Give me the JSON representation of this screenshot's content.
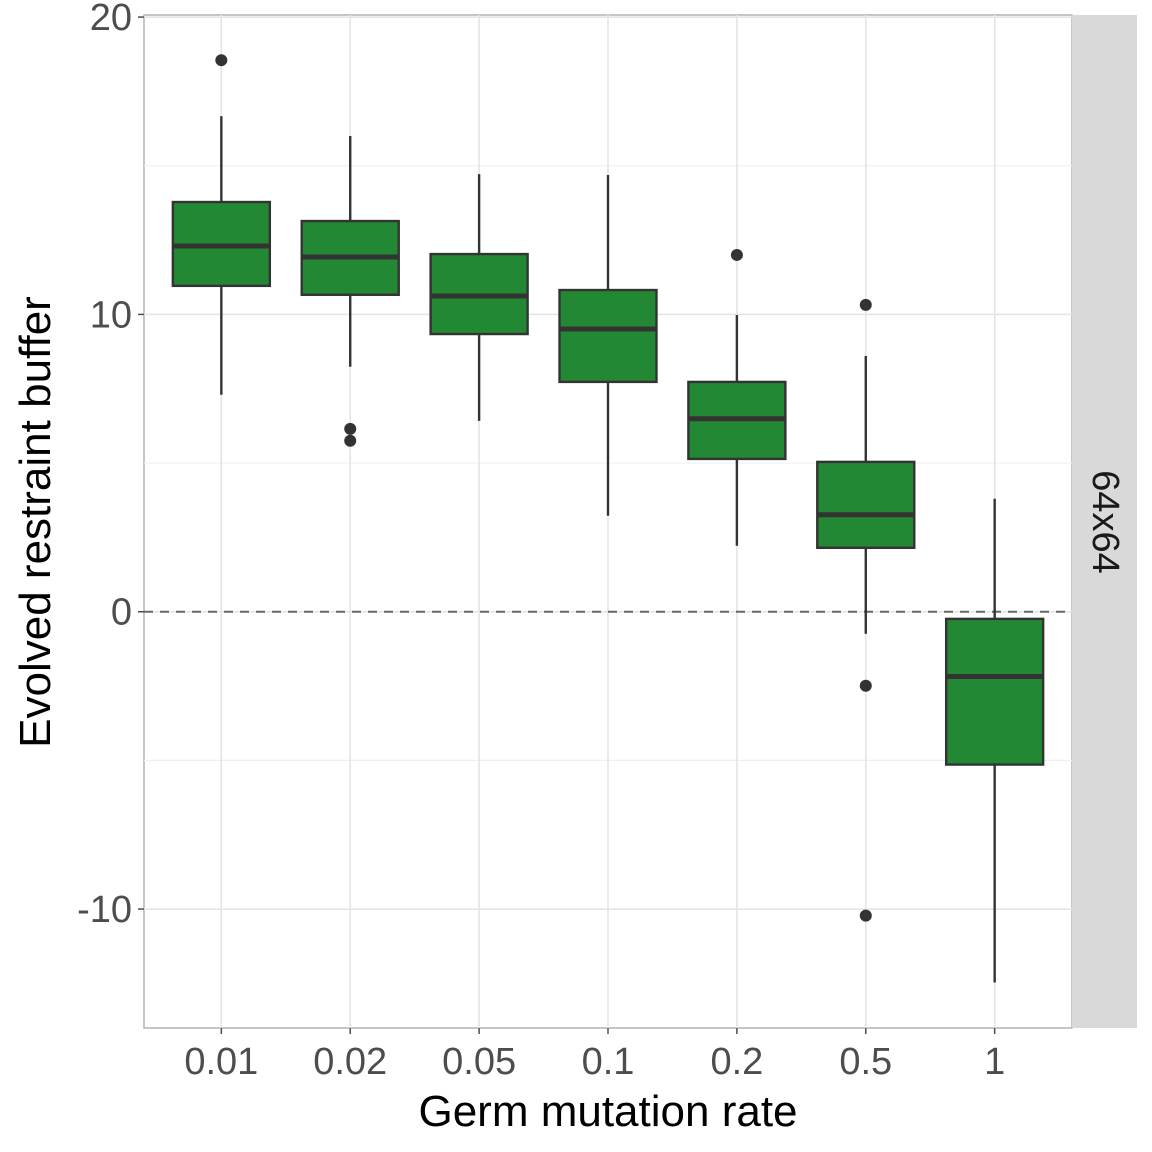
{
  "chart_data": {
    "type": "box",
    "xlabel": "Germ mutation rate",
    "ylabel": "Evolved restraint buffer",
    "facet_label": "64x64",
    "categories": [
      "0.01",
      "0.02",
      "0.05",
      "0.1",
      "0.2",
      "0.5",
      "1"
    ],
    "ylim": [
      -14,
      20.07
    ],
    "yticks": [
      -10,
      0,
      10,
      20
    ],
    "ytick_labels": [
      "-10",
      "0",
      "10",
      "20"
    ],
    "reference_line": 0,
    "grid": true,
    "fill_color": "#228833",
    "boxes": [
      {
        "lower_whisker": 7.3,
        "q1": 10.96,
        "median": 12.3,
        "q3": 13.78,
        "upper_whisker": 16.67,
        "outliers": [
          18.55
        ]
      },
      {
        "lower_whisker": 8.24,
        "q1": 10.66,
        "median": 11.93,
        "q3": 13.14,
        "upper_whisker": 16.0,
        "outliers": [
          6.15,
          5.75
        ]
      },
      {
        "lower_whisker": 6.42,
        "q1": 9.34,
        "median": 10.62,
        "q3": 12.03,
        "upper_whisker": 14.72,
        "outliers": []
      },
      {
        "lower_whisker": 3.23,
        "q1": 7.73,
        "median": 9.51,
        "q3": 10.82,
        "upper_whisker": 14.69,
        "outliers": []
      },
      {
        "lower_whisker": 2.22,
        "q1": 5.14,
        "median": 6.49,
        "q3": 7.73,
        "upper_whisker": 9.98,
        "outliers": [
          12.0
        ]
      },
      {
        "lower_whisker": -0.74,
        "q1": 2.15,
        "median": 3.26,
        "q3": 5.04,
        "upper_whisker": 8.6,
        "outliers": [
          10.32,
          -2.49,
          -10.22
        ]
      },
      {
        "lower_whisker": -12.47,
        "q1": -5.14,
        "median": -2.18,
        "q3": -0.24,
        "upper_whisker": 3.8,
        "outliers": []
      }
    ]
  }
}
